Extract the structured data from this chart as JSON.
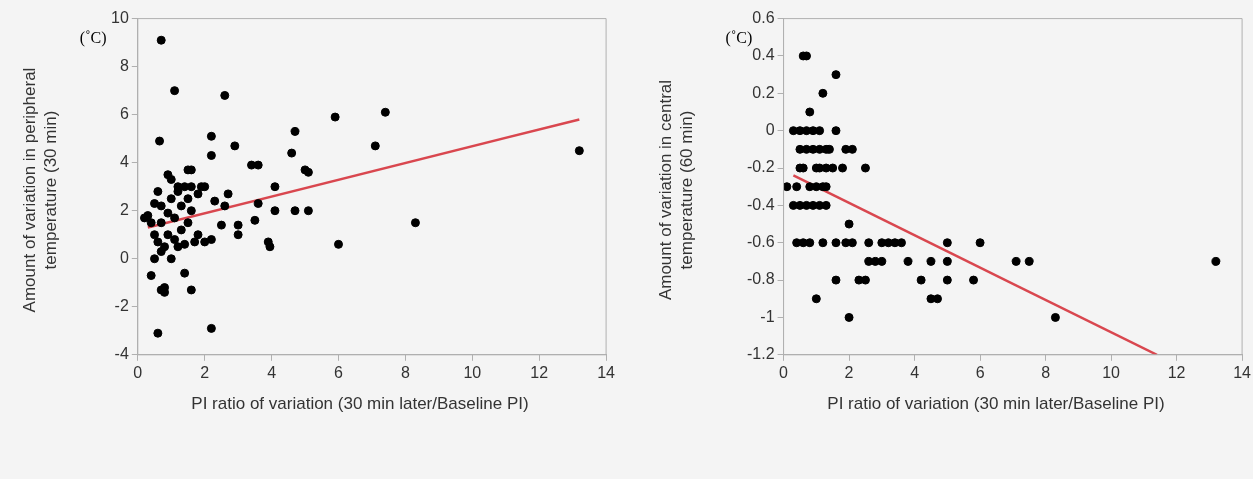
{
  "chart_data": [
    {
      "type": "scatter",
      "xlabel": "PI ratio of variation (30 min later/Baseline PI)",
      "ylabel": "Amount of variation in peripheral temperature (30 min)",
      "annotations": [
        "(˚C)"
      ],
      "xlim": [
        0,
        14
      ],
      "xticks": [
        0,
        2,
        4,
        6,
        8,
        10,
        12,
        14
      ],
      "ylim": [
        -4,
        10
      ],
      "yticks": [
        -4,
        -2,
        0,
        2,
        4,
        6,
        8,
        10
      ],
      "grid": false,
      "marker": "circle",
      "series": [
        {
          "color": "#000000",
          "x": [
            0.7,
            1.1,
            2.6,
            0.65,
            5.9,
            7.4,
            7.1,
            4.7,
            4.6,
            2.2,
            2.2,
            2.9,
            3.4,
            3.6,
            4.1,
            5.0,
            5.1,
            4.7,
            5.1,
            4.1,
            3.6,
            3.5,
            3.9,
            3.95,
            3.0,
            3.0,
            2.7,
            2.6,
            2.5,
            2.2,
            2.0,
            1.9,
            1.4,
            1.6,
            1.5,
            1.0,
            0.9,
            1.2,
            1.5,
            1.6,
            1.3,
            1.0,
            0.7,
            0.5,
            0.6,
            0.3,
            0.2,
            0.4,
            0.7,
            0.9,
            1.1,
            1.3,
            1.5,
            0.9,
            1.1,
            0.8,
            0.7,
            0.6,
            1.2,
            1.4,
            0.5,
            0.4,
            1.4,
            0.8,
            0.7,
            0.8,
            1.6,
            0.6,
            2.2,
            8.3,
            6.0,
            13.2,
            1.8,
            0.5,
            1.0,
            1.7,
            2.0,
            1.8,
            2.3,
            1.2,
            1.6
          ],
          "values": [
            9.1,
            7.0,
            6.8,
            4.9,
            5.9,
            6.1,
            4.7,
            5.3,
            4.4,
            5.1,
            4.3,
            4.7,
            3.9,
            3.9,
            3.0,
            3.7,
            3.6,
            2.0,
            2.0,
            2.0,
            2.3,
            1.6,
            0.7,
            0.5,
            1.4,
            1.0,
            2.7,
            2.2,
            1.4,
            0.8,
            0.7,
            3.0,
            3.0,
            3.7,
            3.7,
            3.3,
            3.5,
            2.8,
            2.5,
            2.0,
            2.2,
            2.5,
            2.2,
            2.3,
            2.8,
            1.8,
            1.7,
            1.5,
            1.5,
            1.9,
            1.7,
            1.2,
            1.5,
            1.0,
            0.8,
            0.5,
            0.3,
            0.7,
            0.5,
            0.6,
            0.0,
            -0.7,
            -0.6,
            -1.2,
            -1.3,
            -1.4,
            -1.3,
            -3.1,
            -2.9,
            1.5,
            0.6,
            4.5,
            1.0,
            1.0,
            0.0,
            0.7,
            3.0,
            2.7,
            2.4,
            3.0,
            3.0
          ]
        },
        {
          "type": "line",
          "marker": "none",
          "color": "#d9474f",
          "x": [
            0.3,
            13.2
          ],
          "values": [
            1.3,
            5.8
          ]
        }
      ]
    },
    {
      "type": "scatter",
      "xlabel": "PI ratio of variation (30 min later/Baseline PI)",
      "ylabel": "Amount of variation in central temperature (60 min)",
      "annotations": [
        "(˚C)"
      ],
      "xlim": [
        0,
        14
      ],
      "xticks": [
        0,
        2,
        4,
        6,
        8,
        10,
        12,
        14
      ],
      "ylim": [
        -1.2,
        0.6
      ],
      "yticks": [
        -1.2,
        -1,
        -0.8,
        -0.6,
        -0.4,
        -0.2,
        0,
        0.2,
        0.4,
        0.6
      ],
      "grid": false,
      "marker": "circle",
      "series": [
        {
          "color": "#000000",
          "x": [
            0.6,
            0.7,
            1.6,
            1.2,
            0.8,
            0.3,
            0.5,
            0.7,
            0.9,
            1.1,
            1.6,
            0.5,
            0.7,
            0.9,
            1.1,
            1.3,
            1.4,
            1.9,
            2.1,
            0.5,
            0.6,
            1.0,
            1.1,
            1.3,
            1.5,
            1.8,
            2.5,
            0.1,
            0.4,
            0.8,
            1.0,
            1.2,
            1.3,
            0.3,
            0.5,
            0.7,
            0.9,
            1.1,
            1.3,
            2.0,
            0.4,
            0.6,
            0.8,
            1.2,
            1.6,
            1.9,
            2.1,
            2.6,
            3.0,
            3.2,
            3.4,
            3.6,
            5.0,
            6.0,
            2.6,
            2.8,
            3.0,
            3.8,
            4.5,
            5.0,
            7.1,
            7.5,
            13.2,
            1.6,
            2.3,
            2.5,
            4.2,
            5.0,
            5.8,
            1.0,
            4.5,
            4.7,
            2.0,
            8.3
          ],
          "values": [
            0.4,
            0.4,
            0.3,
            0.2,
            0.1,
            0,
            0,
            0,
            0,
            0,
            0,
            -0.1,
            -0.1,
            -0.1,
            -0.1,
            -0.1,
            -0.1,
            -0.1,
            -0.1,
            -0.2,
            -0.2,
            -0.2,
            -0.2,
            -0.2,
            -0.2,
            -0.2,
            -0.2,
            -0.3,
            -0.3,
            -0.3,
            -0.3,
            -0.3,
            -0.3,
            -0.4,
            -0.4,
            -0.4,
            -0.4,
            -0.4,
            -0.4,
            -0.5,
            -0.6,
            -0.6,
            -0.6,
            -0.6,
            -0.6,
            -0.6,
            -0.6,
            -0.6,
            -0.6,
            -0.6,
            -0.6,
            -0.6,
            -0.6,
            -0.6,
            -0.7,
            -0.7,
            -0.7,
            -0.7,
            -0.7,
            -0.7,
            -0.7,
            -0.7,
            -0.7,
            -0.8,
            -0.8,
            -0.8,
            -0.8,
            -0.8,
            -0.8,
            -0.9,
            -0.9,
            -0.9,
            -1.0,
            -1.0
          ]
        },
        {
          "type": "line",
          "marker": "none",
          "color": "#d9474f",
          "x": [
            0.3,
            11.4
          ],
          "values": [
            -0.24,
            -1.2
          ]
        }
      ]
    }
  ]
}
